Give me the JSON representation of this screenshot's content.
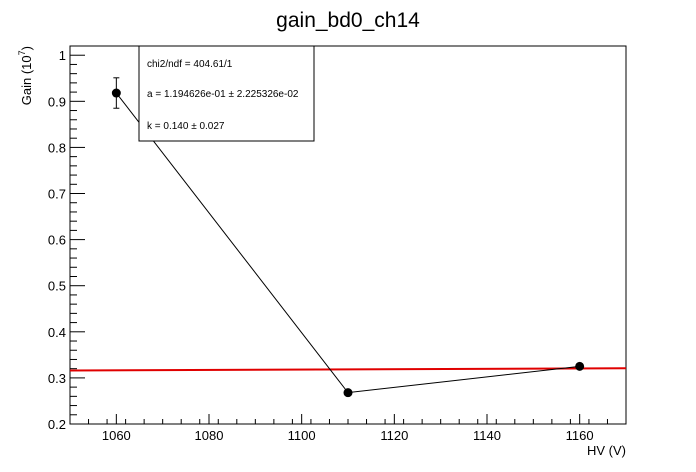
{
  "chart_data": {
    "type": "scatter",
    "title": "gain_bd0_ch14",
    "xlabel": "HV (V)",
    "ylabel": "Gain (10",
    "ylabel_sup": "7",
    "ylabel_close": ")",
    "xlim": [
      1050,
      1170
    ],
    "ylim": [
      0.2,
      1.02
    ],
    "x_ticks": [
      1060,
      1080,
      1100,
      1120,
      1140,
      1160
    ],
    "y_ticks": [
      0.2,
      0.3,
      0.4,
      0.5,
      0.6,
      0.7,
      0.8,
      0.9,
      1
    ],
    "y_tick_labels": [
      "0.2",
      "0.3",
      "0.4",
      "0.5",
      "0.6",
      "0.7",
      "0.8",
      "0.9",
      "1"
    ],
    "grid": false,
    "series": [
      {
        "x": [
          1060,
          1110,
          1160
        ],
        "y": [
          0.918,
          0.268,
          0.325
        ],
        "yerr": [
          0.033,
          0.004,
          0.004
        ],
        "color": "#000000"
      }
    ],
    "fit": {
      "type": "line",
      "x": [
        1050,
        1170
      ],
      "y": [
        0.316,
        0.321
      ],
      "color": "#e00000"
    },
    "stats_box": {
      "lines": [
        "chi2/ndf = 404.61/1",
        "a = 1.194626e-01 ± 2.225326e-02",
        "k = 0.140 ± 0.027"
      ],
      "placement": "top-left"
    }
  }
}
